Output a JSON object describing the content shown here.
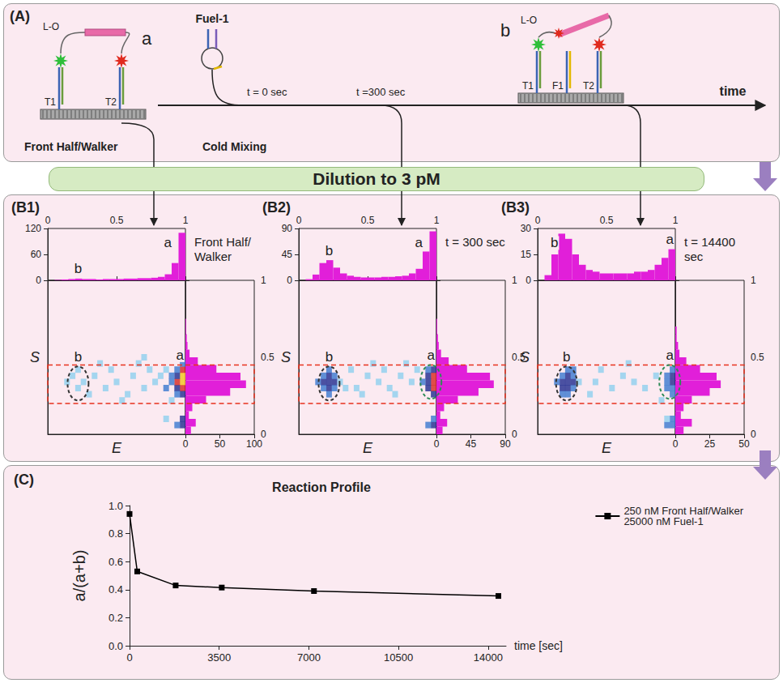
{
  "diagram": {
    "panel": "(A)",
    "state_a": {
      "label": "a",
      "linker": "L-O",
      "strands": [
        "T1",
        "T2"
      ],
      "caption": "Front Half/Walker"
    },
    "fuel": {
      "label": "Fuel-1",
      "caption": "Cold Mixing"
    },
    "times": [
      "t = 0 sec",
      "t =300 sec"
    ],
    "state_b": {
      "label": "b",
      "linker": "L-O",
      "strands": [
        "T1",
        "F1",
        "T2"
      ]
    },
    "axis": "time",
    "banner": "Dilution to 3 pM"
  },
  "chart_data": [
    {
      "panel": "(B1)",
      "type": "histogram2d",
      "title": "Front Half/Walker",
      "x_label": "E",
      "y_label": "S",
      "xlim": [
        0,
        1
      ],
      "xticks": [
        0,
        0.5,
        1
      ],
      "ylim": [
        0,
        1
      ],
      "yticks": [
        0,
        0.5,
        1
      ],
      "e_histogram": {
        "color": "#e11fd9",
        "ylim": [
          0,
          120
        ],
        "yticks": [
          0,
          60,
          120
        ],
        "bins": [
          0,
          0.05,
          0.1,
          0.15,
          0.2,
          0.25,
          0.3,
          0.35,
          0.4,
          0.45,
          0.5,
          0.55,
          0.6,
          0.65,
          0.7,
          0.75,
          0.8,
          0.85,
          0.9,
          0.95,
          1
        ],
        "counts": [
          0,
          1,
          2,
          3,
          4,
          3,
          3,
          2,
          3,
          3,
          3,
          4,
          4,
          5,
          5,
          6,
          8,
          14,
          40,
          110
        ]
      },
      "s_histogram": {
        "color": "#e11fd9",
        "xlim": [
          0,
          100
        ],
        "xticks": [
          0,
          50,
          100
        ],
        "bins": [
          0,
          0.05,
          0.1,
          0.15,
          0.2,
          0.25,
          0.3,
          0.35,
          0.4,
          0.45,
          0.5,
          0.55,
          0.6,
          0.65,
          0.7,
          0.75,
          0.8,
          0.85,
          0.9,
          0.95,
          1
        ],
        "counts": [
          8,
          15,
          5,
          10,
          30,
          65,
          88,
          80,
          45,
          18,
          6,
          3,
          2,
          1,
          1,
          0,
          0,
          0,
          0,
          0
        ]
      },
      "cells": [
        [
          0.98,
          0.3,
          12
        ],
        [
          0.98,
          0.34,
          20
        ],
        [
          0.98,
          0.38,
          16
        ],
        [
          0.98,
          0.42,
          8
        ],
        [
          0.98,
          0.26,
          6
        ],
        [
          0.94,
          0.3,
          6
        ],
        [
          0.94,
          0.34,
          9
        ],
        [
          0.94,
          0.38,
          7
        ],
        [
          0.94,
          0.26,
          3
        ],
        [
          0.94,
          0.42,
          3
        ],
        [
          0.9,
          0.34,
          3
        ],
        [
          0.9,
          0.38,
          2
        ],
        [
          0.98,
          0.06,
          6
        ],
        [
          0.98,
          0.1,
          4
        ],
        [
          0.94,
          0.06,
          3
        ],
        [
          0.98,
          0.46,
          3
        ],
        [
          0.86,
          0.3,
          2
        ],
        [
          0.82,
          0.38,
          1
        ],
        [
          0.78,
          0.34,
          1
        ],
        [
          0.74,
          0.42,
          1
        ],
        [
          0.7,
          0.3,
          1
        ],
        [
          0.62,
          0.38,
          1
        ],
        [
          0.58,
          0.26,
          1
        ],
        [
          0.5,
          0.34,
          1
        ],
        [
          0.46,
          0.42,
          1
        ],
        [
          0.42,
          0.3,
          1
        ],
        [
          0.34,
          0.38,
          1
        ],
        [
          0.3,
          0.26,
          1
        ],
        [
          0.26,
          0.34,
          1
        ],
        [
          0.22,
          0.3,
          1
        ],
        [
          0.18,
          0.38,
          1
        ],
        [
          0.22,
          0.42,
          1
        ],
        [
          0.66,
          0.46,
          1
        ],
        [
          0.54,
          0.22,
          1
        ],
        [
          0.38,
          0.46,
          1
        ],
        [
          0.86,
          0.42,
          1
        ],
        [
          0.9,
          0.22,
          1
        ],
        [
          0.14,
          0.34,
          1
        ],
        [
          0.86,
          0.1,
          1
        ],
        [
          0.7,
          0.5,
          1
        ]
      ],
      "s_window": [
        0.2,
        0.45
      ],
      "clusters": [
        {
          "label": "b",
          "E": 0.22,
          "S": 0.33,
          "color": "#333333"
        },
        {
          "label": "a",
          "E": 0.96,
          "S": 0.34
        }
      ]
    },
    {
      "panel": "(B2)",
      "type": "histogram2d",
      "title": "t = 300 sec",
      "x_label": "E",
      "y_label": "S",
      "xlim": [
        0,
        1
      ],
      "xticks": [
        0,
        0.5,
        1
      ],
      "ylim": [
        0,
        1
      ],
      "yticks": [
        0,
        0.5,
        1
      ],
      "e_histogram": {
        "color": "#e11fd9",
        "ylim": [
          0,
          90
        ],
        "yticks": [
          0,
          45,
          90
        ],
        "bins": [
          0,
          0.05,
          0.1,
          0.15,
          0.2,
          0.25,
          0.3,
          0.35,
          0.4,
          0.45,
          0.5,
          0.55,
          0.6,
          0.65,
          0.7,
          0.75,
          0.8,
          0.85,
          0.9,
          0.95,
          1
        ],
        "counts": [
          0,
          2,
          10,
          30,
          35,
          22,
          12,
          8,
          6,
          5,
          5,
          5,
          6,
          6,
          7,
          8,
          12,
          20,
          50,
          85
        ]
      },
      "s_histogram": {
        "color": "#e11fd9",
        "xlim": [
          0,
          90
        ],
        "xticks": [
          0,
          45,
          90
        ],
        "bins": [
          0,
          0.05,
          0.1,
          0.15,
          0.2,
          0.25,
          0.3,
          0.35,
          0.4,
          0.45,
          0.5,
          0.55,
          0.6,
          0.65,
          0.7,
          0.75,
          0.8,
          0.85,
          0.9,
          0.95,
          1
        ],
        "counts": [
          8,
          14,
          5,
          10,
          28,
          55,
          75,
          70,
          40,
          16,
          6,
          3,
          2,
          1,
          1,
          0,
          0,
          0,
          0,
          0
        ]
      },
      "cells": [
        [
          0.98,
          0.3,
          9
        ],
        [
          0.98,
          0.34,
          14
        ],
        [
          0.98,
          0.38,
          11
        ],
        [
          0.98,
          0.42,
          5
        ],
        [
          0.98,
          0.26,
          4
        ],
        [
          0.94,
          0.3,
          4
        ],
        [
          0.94,
          0.34,
          6
        ],
        [
          0.94,
          0.38,
          5
        ],
        [
          0.94,
          0.42,
          2
        ],
        [
          0.9,
          0.34,
          2
        ],
        [
          0.98,
          0.06,
          4
        ],
        [
          0.94,
          0.06,
          2
        ],
        [
          0.98,
          0.1,
          2
        ],
        [
          0.22,
          0.3,
          5
        ],
        [
          0.22,
          0.34,
          6
        ],
        [
          0.22,
          0.38,
          4
        ],
        [
          0.18,
          0.3,
          3
        ],
        [
          0.18,
          0.34,
          4
        ],
        [
          0.18,
          0.38,
          3
        ],
        [
          0.26,
          0.3,
          3
        ],
        [
          0.26,
          0.34,
          4
        ],
        [
          0.26,
          0.38,
          2
        ],
        [
          0.22,
          0.26,
          2
        ],
        [
          0.22,
          0.42,
          2
        ],
        [
          0.14,
          0.34,
          2
        ],
        [
          0.3,
          0.34,
          1
        ],
        [
          0.42,
          0.3,
          1
        ],
        [
          0.5,
          0.38,
          1
        ],
        [
          0.58,
          0.34,
          1
        ],
        [
          0.66,
          0.3,
          1
        ],
        [
          0.74,
          0.38,
          1
        ],
        [
          0.82,
          0.34,
          1
        ],
        [
          0.86,
          0.42,
          1
        ],
        [
          0.38,
          0.42,
          1
        ],
        [
          0.46,
          0.26,
          1
        ],
        [
          0.62,
          0.42,
          1
        ],
        [
          0.7,
          0.26,
          1
        ],
        [
          0.34,
          0.3,
          1
        ],
        [
          0.78,
          0.46,
          1
        ],
        [
          0.54,
          0.46,
          1
        ]
      ],
      "s_window": [
        0.2,
        0.45
      ],
      "clusters": [
        {
          "label": "b",
          "E": 0.22,
          "S": 0.33,
          "color": "#333333"
        },
        {
          "label": "a",
          "E": 0.96,
          "S": 0.34,
          "color": "#2e8b57"
        }
      ]
    },
    {
      "panel": "(B3)",
      "type": "histogram2d",
      "title": "t = 14400 sec",
      "x_label": "E",
      "y_label": "S",
      "xlim": [
        0,
        1
      ],
      "xticks": [
        0,
        0.5,
        1
      ],
      "ylim": [
        0,
        1
      ],
      "yticks": [
        0,
        0.5,
        1
      ],
      "e_histogram": {
        "color": "#e11fd9",
        "ylim": [
          0,
          30
        ],
        "yticks": [
          0,
          15,
          30
        ],
        "bins": [
          0,
          0.05,
          0.1,
          0.15,
          0.2,
          0.25,
          0.3,
          0.35,
          0.4,
          0.45,
          0.5,
          0.55,
          0.6,
          0.65,
          0.7,
          0.75,
          0.8,
          0.85,
          0.9,
          0.95,
          1
        ],
        "counts": [
          0,
          3,
          15,
          27,
          24,
          15,
          9,
          6,
          5,
          4,
          4,
          4,
          4,
          4,
          5,
          5,
          6,
          9,
          13,
          18
        ]
      },
      "s_histogram": {
        "color": "#e11fd9",
        "xlim": [
          0,
          50
        ],
        "xticks": [
          0,
          25,
          50
        ],
        "bins": [
          0,
          0.05,
          0.1,
          0.15,
          0.2,
          0.25,
          0.3,
          0.35,
          0.4,
          0.45,
          0.5,
          0.55,
          0.6,
          0.65,
          0.7,
          0.75,
          0.8,
          0.85,
          0.9,
          0.95,
          1
        ],
        "counts": [
          6,
          12,
          4,
          6,
          12,
          25,
          33,
          30,
          18,
          8,
          3,
          2,
          1,
          1,
          0,
          0,
          0,
          0,
          0,
          0
        ]
      },
      "cells": [
        [
          0.98,
          0.3,
          3
        ],
        [
          0.98,
          0.34,
          5
        ],
        [
          0.98,
          0.38,
          4
        ],
        [
          0.94,
          0.34,
          3
        ],
        [
          0.94,
          0.3,
          2
        ],
        [
          0.94,
          0.38,
          2
        ],
        [
          0.98,
          0.42,
          2
        ],
        [
          0.98,
          0.26,
          2
        ],
        [
          0.98,
          0.06,
          3
        ],
        [
          0.94,
          0.06,
          2
        ],
        [
          0.98,
          0.1,
          2
        ],
        [
          0.94,
          0.1,
          1
        ],
        [
          0.22,
          0.3,
          5
        ],
        [
          0.22,
          0.34,
          6
        ],
        [
          0.22,
          0.38,
          5
        ],
        [
          0.18,
          0.3,
          4
        ],
        [
          0.18,
          0.34,
          5
        ],
        [
          0.18,
          0.38,
          3
        ],
        [
          0.26,
          0.3,
          3
        ],
        [
          0.26,
          0.34,
          4
        ],
        [
          0.26,
          0.38,
          3
        ],
        [
          0.22,
          0.26,
          3
        ],
        [
          0.22,
          0.42,
          2
        ],
        [
          0.14,
          0.34,
          2
        ],
        [
          0.18,
          0.26,
          2
        ],
        [
          0.26,
          0.42,
          2
        ],
        [
          0.3,
          0.34,
          1
        ],
        [
          0.42,
          0.34,
          1
        ],
        [
          0.54,
          0.3,
          1
        ],
        [
          0.62,
          0.38,
          1
        ],
        [
          0.7,
          0.34,
          1
        ],
        [
          0.78,
          0.3,
          1
        ],
        [
          0.86,
          0.38,
          1
        ],
        [
          0.46,
          0.42,
          1
        ],
        [
          0.38,
          0.26,
          1
        ],
        [
          0.66,
          0.46,
          1
        ],
        [
          0.9,
          0.22,
          1
        ]
      ],
      "s_window": [
        0.2,
        0.45
      ],
      "clusters": [
        {
          "label": "b",
          "E": 0.21,
          "S": 0.33,
          "color": "#333333"
        },
        {
          "label": "a",
          "E": 0.96,
          "S": 0.34,
          "color": "#2e8b57"
        }
      ]
    },
    {
      "panel": "(C)",
      "type": "line",
      "title": "Reaction Profile",
      "x_label": "time [sec]",
      "y_label": "a/(a+b)",
      "x": [
        0,
        300,
        1800,
        3600,
        7200,
        14400
      ],
      "series": [
        {
          "name": "250 nM Front Half/Walker\n25000 nM Fuel-1",
          "color": "#000000",
          "marker": "square",
          "line_style": "solid",
          "values": [
            0.94,
            0.53,
            0.43,
            0.415,
            0.39,
            0.355
          ]
        }
      ],
      "xlim": [
        0,
        14700
      ],
      "xticks": [
        0,
        3500,
        7000,
        10500,
        14000
      ],
      "ylim": [
        0,
        1
      ],
      "yticks": [
        {
          "value": 0,
          "label": "0.0"
        },
        0.2,
        0.4,
        0.6,
        0.8,
        {
          "value": 1,
          "label": "1.0"
        }
      ],
      "legend": "top-right"
    }
  ]
}
